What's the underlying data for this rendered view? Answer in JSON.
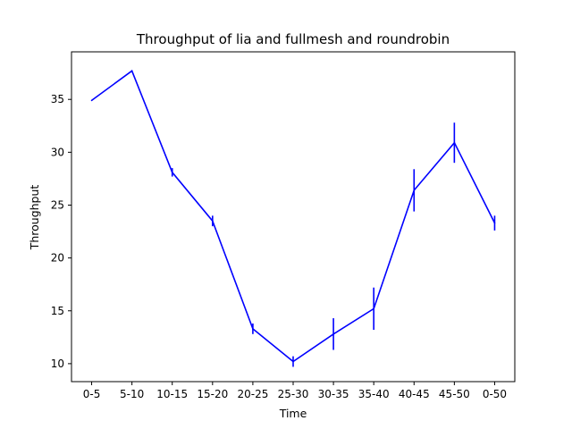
{
  "chart_data": {
    "type": "line",
    "title": "Throughput of lia and fullmesh and roundrobin",
    "xlabel": "Time",
    "ylabel": "Throughput",
    "categories": [
      "0-5",
      "5-10",
      "10-15",
      "15-20",
      "20-25",
      "25-30",
      "30-35",
      "35-40",
      "40-45",
      "45-50",
      "0-50"
    ],
    "yticks": [
      10,
      15,
      20,
      25,
      30,
      35
    ],
    "ylim": [
      8.3,
      39.5
    ],
    "grid": false,
    "series": [
      {
        "color": "#0000ff",
        "values": [
          34.9,
          37.7,
          28.1,
          23.5,
          13.3,
          10.2,
          12.8,
          15.2,
          26.4,
          30.9,
          23.3
        ],
        "errors": [
          0,
          0,
          0.4,
          0.5,
          0.5,
          0.5,
          1.5,
          2.0,
          2.0,
          1.9,
          0.7
        ]
      }
    ]
  }
}
